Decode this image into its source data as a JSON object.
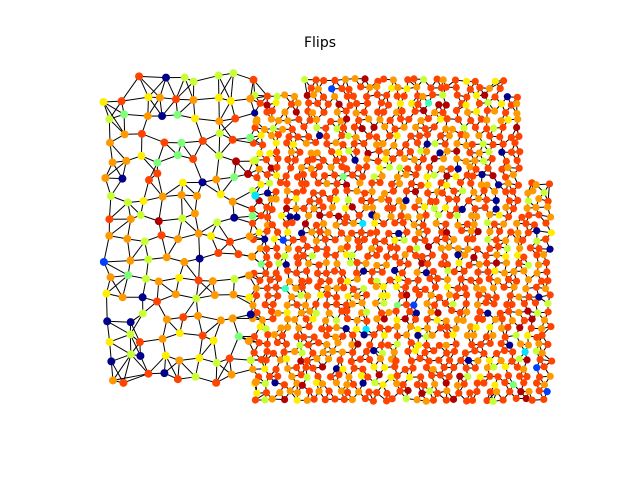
{
  "figure": {
    "title": "Flips"
  },
  "graph": {
    "description_free": true,
    "palette": {
      "background": "#ffffff",
      "edge": "#000000",
      "node_colors": {
        "dark_blue": "#00008b",
        "blue": "#0040ff",
        "cyan": "#00e5ff",
        "teal": "#40ffb8",
        "green": "#7dff7a",
        "yellow_green": "#c8ff37",
        "yellow": "#ffee00",
        "orange": "#ff9900",
        "red_orange": "#ff4400",
        "dark_red": "#b20000"
      },
      "dominant_node_color": "#ff4400"
    }
  }
}
